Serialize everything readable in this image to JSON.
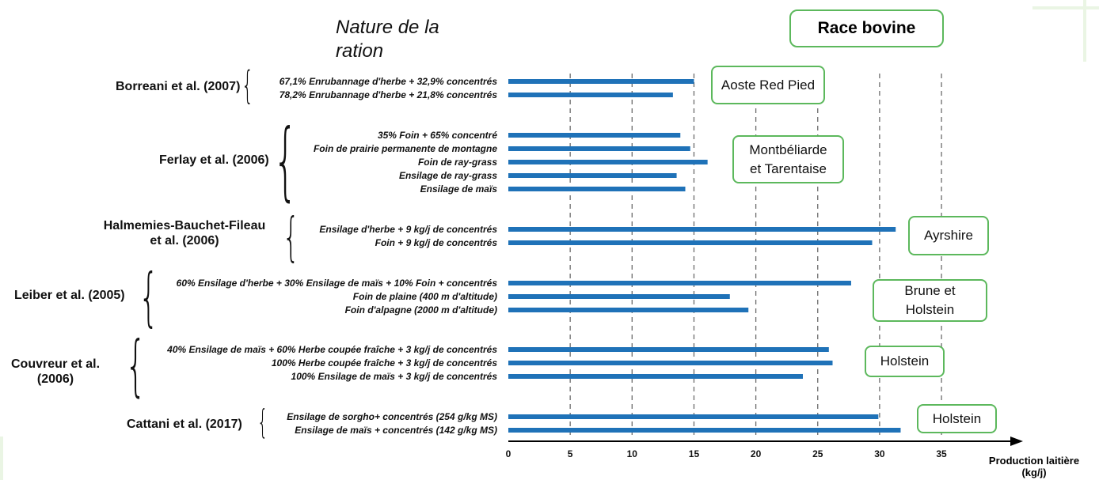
{
  "header": {
    "nature_title": "Nature de la ration",
    "race_title": "Race bovine"
  },
  "axis_label": "Production laitière (kg/j)",
  "chart_data": {
    "type": "bar",
    "orientation": "horizontal",
    "xlabel": "Production laitière (kg/j)",
    "xlim": [
      0,
      40
    ],
    "xticks": [
      0,
      5,
      10,
      15,
      20,
      25,
      30,
      35
    ],
    "grid": "vertical dashed lines at 5 to 35",
    "bar_color": "#1f72b8",
    "groups": [
      {
        "study": "Borreani et al. (2007)",
        "breed": "Aoste Red Pied",
        "rations": [
          {
            "label": "67,1% Enrubannage d'herbe + 32,9% concentrés",
            "value": 15.0
          },
          {
            "label": "78,2% Enrubannage d'herbe + 21,8% concentrés",
            "value": 13.3
          }
        ]
      },
      {
        "study": "Ferlay et al. (2006)",
        "breed": "Montbéliarde et Tarentaise",
        "rations": [
          {
            "label": "35% Foin + 65% concentré",
            "value": 13.9
          },
          {
            "label": "Foin de prairie permanente de montagne",
            "value": 14.7
          },
          {
            "label": "Foin de ray-grass",
            "value": 16.1
          },
          {
            "label": "Ensilage de ray-grass",
            "value": 13.6
          },
          {
            "label": "Ensilage de maïs",
            "value": 14.3
          }
        ]
      },
      {
        "study": "Halmemies-Bauchet-Fileau et al. (2006)",
        "breed": "Ayrshire",
        "rations": [
          {
            "label": "Ensilage d'herbe + 9 kg/j de concentrés",
            "value": 31.3
          },
          {
            "label": "Foin + 9 kg/j de concentrés",
            "value": 29.4
          }
        ]
      },
      {
        "study": "Leiber et al. (2005)",
        "breed": "Brune et Holstein",
        "rations": [
          {
            "label": "60% Ensilage d'herbe + 30% Ensilage de maïs + 10% Foin + concentrés",
            "value": 27.7
          },
          {
            "label": "Foin de plaine (400 m d'altitude)",
            "value": 17.9
          },
          {
            "label": "Foin d'alpagne (2000 m d'altitude)",
            "value": 19.4
          }
        ]
      },
      {
        "study": "Couvreur et al. (2006)",
        "breed": "Holstein",
        "rations": [
          {
            "label": "40% Ensilage de maïs + 60% Herbe coupée fraîche + 3 kg/j de concentrés",
            "value": 25.9
          },
          {
            "label": "100% Herbe coupée fraîche + 3 kg/j de concentrés",
            "value": 26.2
          },
          {
            "label": "100% Ensilage de maïs + 3 kg/j de concentrés",
            "value": 23.8
          }
        ]
      },
      {
        "study": "Cattani et al. (2017)",
        "breed": "Holstein",
        "rations": [
          {
            "label": "Ensilage de sorgho+ concentrés (254 g/kg MS)",
            "value": 29.9
          },
          {
            "label": "Ensilage de maïs + concentrés (142 g/kg MS)",
            "value": 31.7
          }
        ]
      }
    ]
  }
}
